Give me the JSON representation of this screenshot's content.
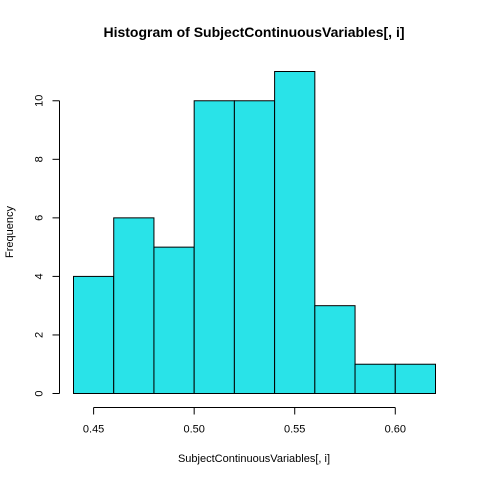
{
  "chart_data": {
    "type": "bar",
    "title": "Histogram of SubjectContinuousVariables[, i]",
    "xlabel": "SubjectContinuousVariables[, i]",
    "ylabel": "Frequency",
    "bins": [
      {
        "from": 0.44,
        "to": 0.46,
        "count": 4
      },
      {
        "from": 0.46,
        "to": 0.48,
        "count": 6
      },
      {
        "from": 0.48,
        "to": 0.5,
        "count": 5
      },
      {
        "from": 0.5,
        "to": 0.52,
        "count": 10
      },
      {
        "from": 0.52,
        "to": 0.54,
        "count": 10
      },
      {
        "from": 0.54,
        "to": 0.56,
        "count": 11
      },
      {
        "from": 0.56,
        "to": 0.58,
        "count": 3
      },
      {
        "from": 0.58,
        "to": 0.6,
        "count": 1
      },
      {
        "from": 0.6,
        "to": 0.62,
        "count": 1
      }
    ],
    "xlim": [
      0.44,
      0.62
    ],
    "ylim": [
      0,
      11
    ],
    "xticks": [
      0.45,
      0.5,
      0.55,
      0.6
    ],
    "xtick_labels": [
      "0.45",
      "0.50",
      "0.55",
      "0.60"
    ],
    "yticks": [
      0,
      2,
      4,
      6,
      8,
      10
    ],
    "ytick_labels": [
      "0",
      "2",
      "4",
      "6",
      "8",
      "10"
    ],
    "bar_color": "#29e3e8",
    "grid": false,
    "legend": "none"
  }
}
